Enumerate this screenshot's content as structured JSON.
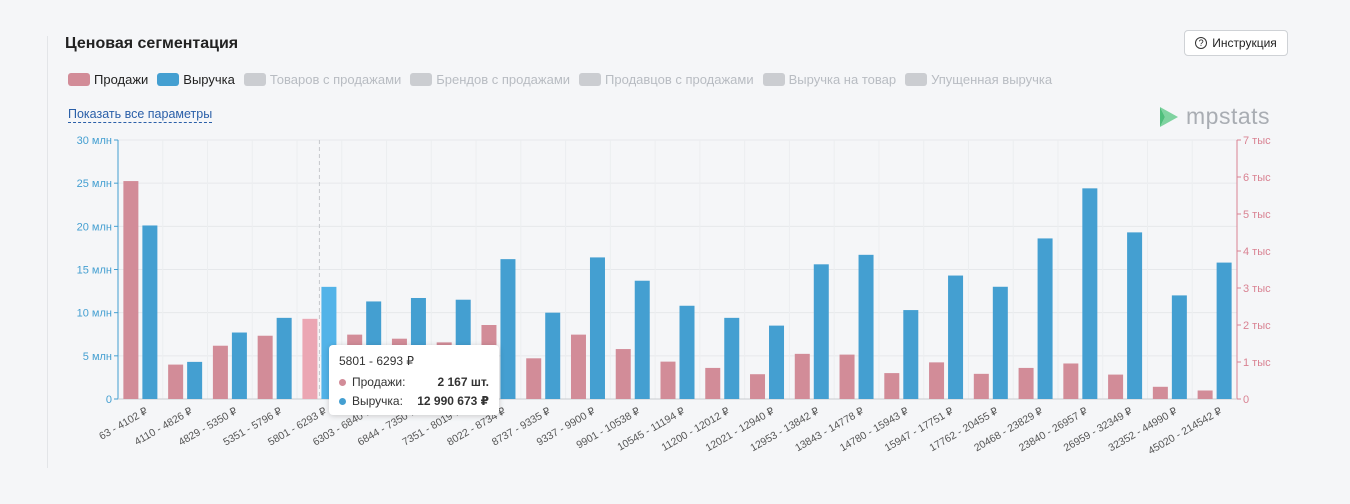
{
  "title": "Ценовая сегментация",
  "help_button": {
    "label": "Инструкция",
    "icon": "question-circle-icon"
  },
  "legend": [
    {
      "label": "Продажи",
      "color": "#d28c98",
      "active": true
    },
    {
      "label": "Выручка",
      "color": "#449fd1",
      "active": true
    },
    {
      "label": "Товаров с продажами",
      "color": "#cbcdd1",
      "active": false
    },
    {
      "label": "Брендов с продажами",
      "color": "#cbcdd1",
      "active": false
    },
    {
      "label": "Продавцов с продажами",
      "color": "#cbcdd1",
      "active": false
    },
    {
      "label": "Выручка на товар",
      "color": "#cbcdd1",
      "active": false
    },
    {
      "label": "Упущенная выручка",
      "color": "#cbcdd1",
      "active": false
    }
  ],
  "show_all_label": "Показать все параметры",
  "logo": {
    "text": "mpstats",
    "icon": "mpstats-logo-icon"
  },
  "tooltip": {
    "title": "5801 - 6293 ₽",
    "rows": [
      {
        "label": "Продажи:",
        "value": "2 167 шт.",
        "color": "#d28c98"
      },
      {
        "label": "Выручка:",
        "value": "12 990 673 ₽",
        "color": "#449fd1"
      }
    ]
  },
  "chart_data": {
    "type": "bar",
    "categories": [
      "63 - 4102 ₽",
      "4110 - 4826 ₽",
      "4829 - 5350 ₽",
      "5351 - 5796 ₽",
      "5801 - 6293 ₽",
      "6303 - 6840 ₽",
      "6844 - 7350 ₽",
      "7351 - 8019 ₽",
      "8022 - 8734 ₽",
      "8737 - 9335 ₽",
      "9337 - 9900 ₽",
      "9901 - 10538 ₽",
      "10545 - 11194 ₽",
      "11200 - 12012 ₽",
      "12021 - 12940 ₽",
      "12953 - 13842 ₽",
      "13843 - 14778 ₽",
      "14780 - 15943 ₽",
      "15947 - 17751 ₽",
      "17762 - 20455 ₽",
      "20468 - 23829 ₽",
      "23840 - 26957 ₽",
      "26959 - 32349 ₽",
      "32352 - 44990 ₽",
      "45020 - 214542 ₽"
    ],
    "series": [
      {
        "name": "Продажи",
        "axis": "right",
        "color": "#d28c98",
        "values": [
          5890,
          930,
          1440,
          1710,
          2167,
          1740,
          1630,
          1530,
          2000,
          1100,
          1740,
          1350,
          1010,
          840,
          670,
          1220,
          1200,
          700,
          990,
          680,
          840,
          960,
          660,
          330,
          230
        ]
      },
      {
        "name": "Выручка",
        "axis": "left",
        "color": "#449fd1",
        "values": [
          20100000,
          4300000,
          7700000,
          9400000,
          12990673,
          11300000,
          11700000,
          11500000,
          16200000,
          10000000,
          16400000,
          13700000,
          10800000,
          9400000,
          8500000,
          15600000,
          16700000,
          10300000,
          14300000,
          13000000,
          18600000,
          24400000,
          19300000,
          12000000,
          15800000
        ]
      }
    ],
    "y_left": {
      "min": 0,
      "max": 30000000,
      "ticks": [
        0,
        5000000,
        10000000,
        15000000,
        20000000,
        25000000,
        30000000
      ],
      "tick_labels": [
        "0",
        "5 млн",
        "10 млн",
        "15 млн",
        "20 млн",
        "25 млн",
        "30 млн"
      ],
      "color": "#449fd1"
    },
    "y_right": {
      "min": 0,
      "max": 7000,
      "ticks": [
        0,
        1000,
        2000,
        3000,
        4000,
        5000,
        6000,
        7000
      ],
      "tick_labels": [
        "0",
        "1 тыс",
        "2 тыс",
        "3 тыс",
        "4 тыс",
        "5 тыс",
        "6 тыс",
        "7 тыс"
      ],
      "color": "#d98292"
    },
    "highlighted_index": 4,
    "grid": true
  }
}
